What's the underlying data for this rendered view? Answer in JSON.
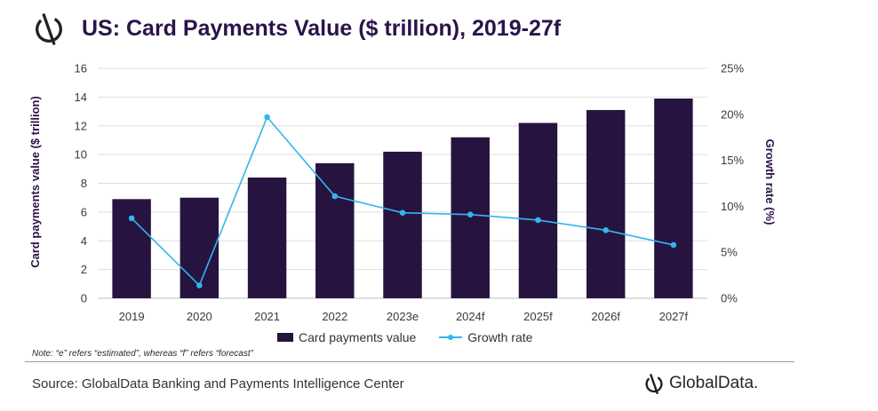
{
  "header": {
    "title": "US: Card Payments Value ($ trillion), 2019-27f",
    "logo_icon": "globaldata-logo-icon"
  },
  "chart_data": {
    "type": "bar",
    "title": "US: Card Payments Value ($ trillion), 2019-27f",
    "categories": [
      "2019",
      "2020",
      "2021",
      "2022",
      "2023e",
      "2024f",
      "2025f",
      "2026f",
      "2027f"
    ],
    "series": [
      {
        "name": "Card payments value",
        "type": "bar",
        "axis": "left",
        "color": "#26133f",
        "values": [
          6.9,
          7.0,
          8.4,
          9.4,
          10.2,
          11.2,
          12.2,
          13.1,
          13.9
        ]
      },
      {
        "name": "Growth rate",
        "type": "line",
        "axis": "right",
        "color": "#33b5f0",
        "values": [
          8.7,
          1.4,
          19.7,
          11.1,
          9.3,
          9.1,
          8.5,
          7.4,
          5.8
        ]
      }
    ],
    "y_left": {
      "label": "Card payments value ($ trillion)",
      "range": [
        0,
        16
      ],
      "ticks": [
        "0",
        "2",
        "4",
        "6",
        "8",
        "10",
        "12",
        "14",
        "16"
      ]
    },
    "y_right": {
      "label": "Growth rate (%)",
      "range": [
        0,
        25
      ],
      "ticks": [
        "0%",
        "5%",
        "10%",
        "15%",
        "20%",
        "25%"
      ]
    },
    "grid": true,
    "legend_position": "bottom"
  },
  "legend": {
    "bar_label": "Card payments value",
    "line_label": "Growth rate"
  },
  "note": "Note: “e” refers “estimated”, whereas “f” refers “forecast”",
  "footer": {
    "source": "Source: GlobalData Banking and Payments Intelligence Center",
    "brand": "GlobalData."
  }
}
